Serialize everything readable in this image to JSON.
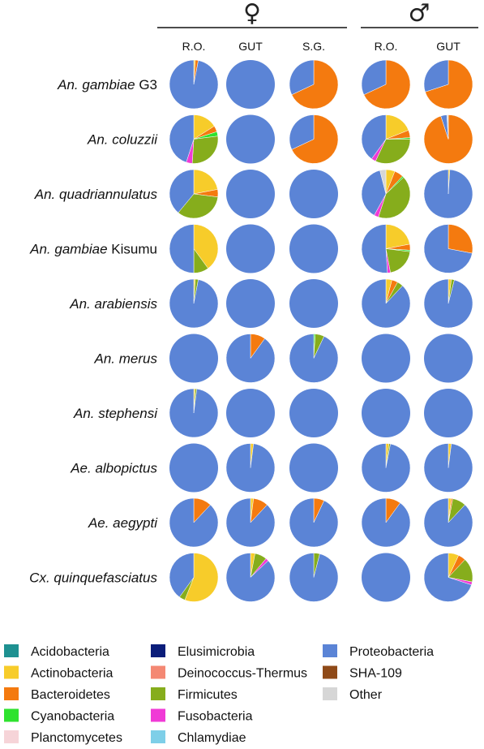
{
  "figure": {
    "sexes": [
      {
        "symbol": "♀",
        "columns": [
          "R.O.",
          "GUT",
          "S.G."
        ]
      },
      {
        "symbol": "♂",
        "columns": [
          "R.O.",
          "GUT"
        ]
      }
    ]
  },
  "colors": {
    "Acidobacteria": "#1e9191",
    "Actinobacteria": "#f7cc2a",
    "Bacteroidetes": "#f47a0f",
    "Cyanobacteria": "#2ee22e",
    "Planctomycetes": "#f6d4d8",
    "Elusimicrobia": "#0b1d7a",
    "Deinococcus-Thermus": "#f48873",
    "Firmicutes": "#86ad1c",
    "Fusobacteria": "#f03ad6",
    "Chlamydiae": "#7ecfe8",
    "Proteobacteria": "#5b84d6",
    "SHA-109": "#8f4a18",
    "Other": "#d6d6d6"
  },
  "legend": [
    [
      "Acidobacteria",
      "Actinobacteria",
      "Bacteroidetes",
      "Cyanobacteria",
      "Planctomycetes"
    ],
    [
      "Elusimicrobia",
      "Deinococcus-Thermus",
      "Firmicutes",
      "Fusobacteria",
      "Chlamydiae"
    ],
    [
      "Proteobacteria",
      "SHA-109",
      "Other"
    ]
  ],
  "chart_data": {
    "type": "pie",
    "title": "",
    "columns": [
      "♀ R.O.",
      "♀ GUT",
      "♀ S.G.",
      "♂ R.O.",
      "♂ GUT"
    ],
    "rows": [
      {
        "name": "An. gambiae G3",
        "italic": "An. gambiae",
        "suffix": " G3",
        "pies": [
          {
            "Actinobacteria": 1,
            "Bacteroidetes": 2,
            "Proteobacteria": 97
          },
          {
            "Proteobacteria": 100
          },
          {
            "Bacteroidetes": 68,
            "Proteobacteria": 32
          },
          {
            "Bacteroidetes": 68,
            "Proteobacteria": 32
          },
          {
            "Bacteroidetes": 70,
            "Proteobacteria": 30
          }
        ]
      },
      {
        "name": "An. coluzzii",
        "italic": "An. coluzzii",
        "suffix": "",
        "pies": [
          {
            "Actinobacteria": 16,
            "Bacteroidetes": 4,
            "Cyanobacteria": 3,
            "Firmicutes": 28,
            "Fusobacteria": 4,
            "Proteobacteria": 45
          },
          {
            "Proteobacteria": 100
          },
          {
            "Bacteroidetes": 68,
            "Proteobacteria": 32
          },
          {
            "Actinobacteria": 19,
            "Bacteroidetes": 5,
            "Cyanobacteria": 1,
            "Firmicutes": 32,
            "Fusobacteria": 3,
            "Proteobacteria": 40
          },
          {
            "Bacteroidetes": 95,
            "Proteobacteria": 4,
            "Other": 1
          }
        ]
      },
      {
        "name": "An. quadriannulatus",
        "italic": "An. quadriannulatus",
        "suffix": "",
        "pies": [
          {
            "Actinobacteria": 22,
            "Bacteroidetes": 5,
            "Firmicutes": 34,
            "Proteobacteria": 39
          },
          {
            "Proteobacteria": 100
          },
          {
            "Proteobacteria": 100
          },
          {
            "Actinobacteria": 6,
            "Bacteroidetes": 6,
            "Cyanobacteria": 1,
            "Firmicutes": 42,
            "Fusobacteria": 3,
            "Proteobacteria": 38,
            "Other": 4
          },
          {
            "Actinobacteria": 1,
            "Proteobacteria": 99
          }
        ]
      },
      {
        "name": "An. gambiae Kisumu",
        "italic": "An. gambiae",
        "suffix": " Kisumu",
        "pies": [
          {
            "Actinobacteria": 40,
            "Firmicutes": 10,
            "Proteobacteria": 50
          },
          {
            "Proteobacteria": 100
          },
          {
            "Proteobacteria": 100
          },
          {
            "Actinobacteria": 22,
            "Bacteroidetes": 4,
            "Cyanobacteria": 1,
            "Firmicutes": 20,
            "Fusobacteria": 2,
            "Proteobacteria": 51
          },
          {
            "Bacteroidetes": 28,
            "Proteobacteria": 72
          }
        ]
      },
      {
        "name": "An. arabiensis",
        "italic": "An. arabiensis",
        "suffix": "",
        "pies": [
          {
            "Actinobacteria": 1,
            "Firmicutes": 2,
            "Proteobacteria": 97
          },
          {
            "Proteobacteria": 100
          },
          {
            "Proteobacteria": 100
          },
          {
            "Actinobacteria": 4,
            "Bacteroidetes": 4,
            "Firmicutes": 4,
            "Proteobacteria": 88
          },
          {
            "Actinobacteria": 2,
            "Firmicutes": 2,
            "Proteobacteria": 96
          }
        ]
      },
      {
        "name": "An. merus",
        "italic": "An. merus",
        "suffix": "",
        "pies": [
          {
            "Proteobacteria": 100
          },
          {
            "Bacteroidetes": 10,
            "Proteobacteria": 90
          },
          {
            "Firmicutes": 6,
            "Cyanobacteria": 1,
            "Proteobacteria": 93
          },
          {
            "Proteobacteria": 100
          },
          {
            "Proteobacteria": 100
          }
        ]
      },
      {
        "name": "An. stephensi",
        "italic": "An. stephensi",
        "suffix": "",
        "pies": [
          {
            "Actinobacteria": 1,
            "Firmicutes": 1,
            "Proteobacteria": 98
          },
          {
            "Proteobacteria": 100
          },
          {
            "Proteobacteria": 100
          },
          {
            "Proteobacteria": 100
          },
          {
            "Proteobacteria": 100
          }
        ]
      },
      {
        "name": "Ae. albopictus",
        "italic": "Ae. albopictus",
        "suffix": "",
        "pies": [
          {
            "Proteobacteria": 100
          },
          {
            "Actinobacteria": 2,
            "Proteobacteria": 98
          },
          {
            "Proteobacteria": 100
          },
          {
            "Actinobacteria": 2,
            "Firmicutes": 1,
            "Proteobacteria": 97
          },
          {
            "Actinobacteria": 2,
            "Proteobacteria": 98
          }
        ]
      },
      {
        "name": "Ae. aegypti",
        "italic": "Ae. aegypti",
        "suffix": "",
        "pies": [
          {
            "Bacteroidetes": 12,
            "Proteobacteria": 88
          },
          {
            "Actinobacteria": 2,
            "Bacteroidetes": 10,
            "Proteobacteria": 88
          },
          {
            "Bacteroidetes": 7,
            "Proteobacteria": 93
          },
          {
            "Bacteroidetes": 10,
            "Proteobacteria": 90
          },
          {
            "Actinobacteria": 2,
            "Bacteroidetes": 1,
            "Firmicutes": 9,
            "Proteobacteria": 88
          }
        ]
      },
      {
        "name": "Cx. quinquefasciatus",
        "italic": "Cx. quinquefasciatus",
        "suffix": "",
        "pies": [
          {
            "Actinobacteria": 56,
            "Firmicutes": 4,
            "Proteobacteria": 40
          },
          {
            "Actinobacteria": 3,
            "Firmicutes": 8,
            "Fusobacteria": 2,
            "Proteobacteria": 87
          },
          {
            "Firmicutes": 4,
            "Proteobacteria": 96
          },
          {
            "Proteobacteria": 100
          },
          {
            "Actinobacteria": 7,
            "Bacteroidetes": 5,
            "Firmicutes": 16,
            "Fusobacteria": 2,
            "Proteobacteria": 70
          }
        ]
      }
    ]
  }
}
